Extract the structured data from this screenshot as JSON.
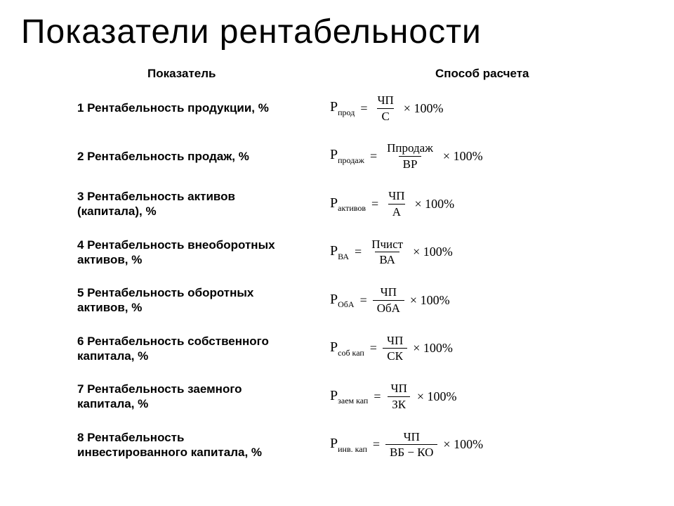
{
  "page": {
    "title": "Показатели рентабельности",
    "title_fontsize": 48,
    "title_weight": 400,
    "background_color": "#ffffff",
    "text_color": "#000000",
    "body_font": "Arial",
    "formula_font": "Times New Roman"
  },
  "headers": {
    "indicator": "Показатель",
    "calc": "Способ расчета",
    "fontsize": 17,
    "weight": 700
  },
  "formula_common": {
    "lhs_base": "Р",
    "equals": "=",
    "multiplier": "× 100%",
    "frac_border_color": "#000000"
  },
  "rows": [
    {
      "indicator": "1 Рентабельность продукции, %",
      "lhs_sub": "прод",
      "numerator": "ЧП",
      "denominator": "С"
    },
    {
      "indicator": "2 Рентабельность продаж, %",
      "lhs_sub": "продаж",
      "numerator": "Ппродаж",
      "denominator": "ВР"
    },
    {
      "indicator": "3 Рентабельность активов (капитала), %",
      "lhs_sub": "активов",
      "numerator": "ЧП",
      "denominator": "А"
    },
    {
      "indicator": "4 Рентабельность внеоборотных активов, %",
      "lhs_sub": "ВА",
      "numerator": "Пчист",
      "denominator": "ВА"
    },
    {
      "indicator": "5 Рентабельность оборотных активов, %",
      "lhs_sub": "ОбА",
      "numerator": "ЧП",
      "denominator": "ОбА"
    },
    {
      "indicator": "6 Рентабельность собственного капитала, %",
      "lhs_sub": "соб кап",
      "numerator": "ЧП",
      "denominator": "СК"
    },
    {
      "indicator": "7 Рентабельность заемного капитала, %",
      "lhs_sub": "заем кап",
      "numerator": "ЧП",
      "denominator": "ЗК"
    },
    {
      "indicator": "8 Рентабельность инвестированного капитала, %",
      "lhs_sub": "инв. кап",
      "numerator": "ЧП",
      "denominator": "ВБ − КО"
    }
  ]
}
